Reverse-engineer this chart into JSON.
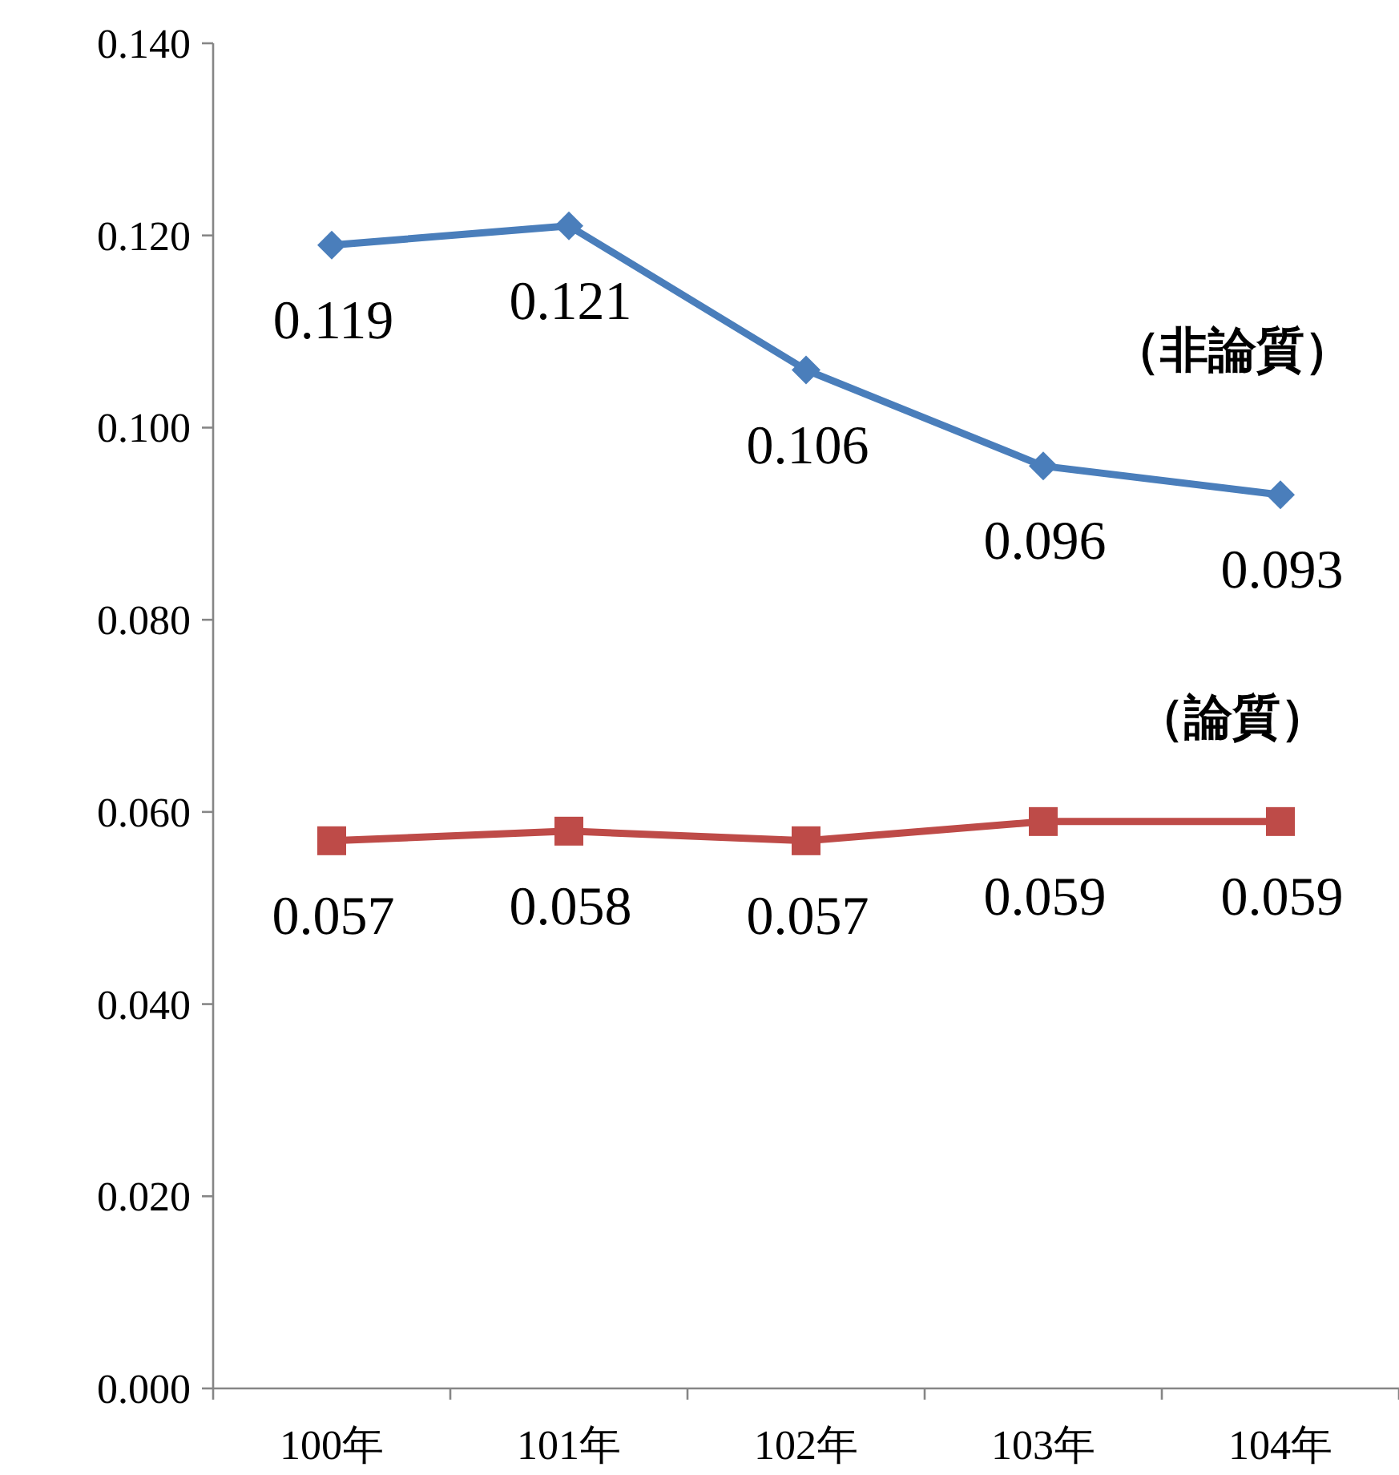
{
  "chart_data": {
    "type": "line",
    "categories": [
      "100年",
      "101年",
      "102年",
      "103年",
      "104年"
    ],
    "series": [
      {
        "name": "（非論質）",
        "color": "#4a7ebb",
        "marker": "diamond",
        "values": [
          0.119,
          0.121,
          0.106,
          0.096,
          0.093
        ]
      },
      {
        "name": "（論質）",
        "color": "#be4b48",
        "marker": "square",
        "values": [
          0.057,
          0.058,
          0.057,
          0.059,
          0.059
        ]
      }
    ],
    "ylim": [
      0,
      0.14
    ],
    "yticks": [
      {
        "value": 0,
        "label": "0.000"
      },
      {
        "value": 0.02,
        "label": "0.020"
      },
      {
        "value": 0.04,
        "label": "0.040"
      },
      {
        "value": 0.06,
        "label": "0.060"
      },
      {
        "value": 0.08,
        "label": "0.080"
      },
      {
        "value": 0.1,
        "label": "0.100"
      },
      {
        "value": 0.12,
        "label": "0.120"
      },
      {
        "value": 0.14,
        "label": "0.140"
      }
    ],
    "data_labels": true,
    "grid": false,
    "line_style": "solid"
  }
}
